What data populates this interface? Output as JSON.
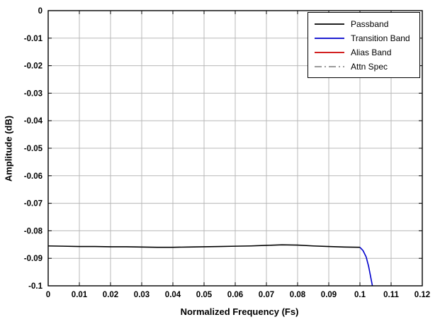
{
  "figure": {
    "background": "#ffffff",
    "grid_color": "#b8b8b8",
    "border_color": "#000000"
  },
  "chart_data": {
    "type": "line",
    "title": "",
    "xlabel": "Normalized Frequency (Fs)",
    "ylabel": "Amplitude (dB)",
    "xlim": [
      0,
      0.12
    ],
    "ylim": [
      -0.1,
      0
    ],
    "grid": true,
    "xticks": [
      0,
      0.01,
      0.02,
      0.03,
      0.04,
      0.05,
      0.06,
      0.07,
      0.08,
      0.09,
      0.1,
      0.11,
      0.12
    ],
    "xtick_labels": [
      "0",
      "0.01",
      "0.02",
      "0.03",
      "0.04",
      "0.05",
      "0.06",
      "0.07",
      "0.08",
      "0.09",
      "0.1",
      "0.11",
      "0.12"
    ],
    "yticks": [
      0,
      -0.01,
      -0.02,
      -0.03,
      -0.04,
      -0.05,
      -0.06,
      -0.07,
      -0.08,
      -0.09,
      -0.1
    ],
    "ytick_labels": [
      "0",
      "-0.01",
      "-0.02",
      "-0.03",
      "-0.04",
      "-0.05",
      "-0.06",
      "-0.07",
      "-0.08",
      "-0.09",
      "-0.1"
    ],
    "legend_position": "top-right",
    "series": [
      {
        "name": "Passband",
        "color": "#000000",
        "dash": "solid",
        "width": 1.6,
        "x": [
          0,
          0.005,
          0.01,
          0.015,
          0.02,
          0.025,
          0.03,
          0.035,
          0.04,
          0.045,
          0.05,
          0.055,
          0.06,
          0.065,
          0.07,
          0.075,
          0.08,
          0.085,
          0.09,
          0.095,
          0.1
        ],
        "y": [
          -0.0855,
          -0.0856,
          -0.0857,
          -0.0857,
          -0.0858,
          -0.0858,
          -0.0859,
          -0.086,
          -0.086,
          -0.0859,
          -0.0858,
          -0.0857,
          -0.0856,
          -0.0855,
          -0.0853,
          -0.0851,
          -0.0852,
          -0.0855,
          -0.0857,
          -0.0859,
          -0.086
        ]
      },
      {
        "name": "Transition Band",
        "color": "#0000cc",
        "dash": "solid",
        "width": 1.6,
        "x": [
          0.1,
          0.101,
          0.102,
          0.1028,
          0.1034,
          0.104,
          0.1045
        ],
        "y": [
          -0.086,
          -0.0872,
          -0.0895,
          -0.093,
          -0.0965,
          -0.1,
          -0.105
        ]
      },
      {
        "name": "Alias Band",
        "color": "#cc0000",
        "dash": "solid",
        "width": 1.6,
        "x": [],
        "y": []
      },
      {
        "name": "Attn Spec",
        "color": "#8c8c8c",
        "dash": "dash-dot",
        "width": 1.6,
        "x": [],
        "y": []
      }
    ]
  }
}
